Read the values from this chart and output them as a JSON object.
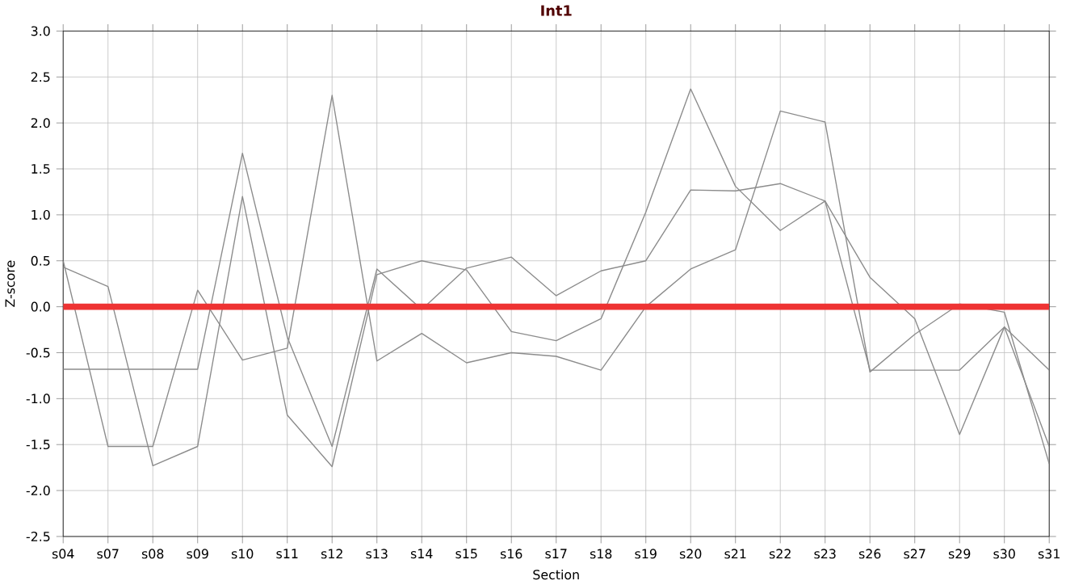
{
  "chart_data": {
    "type": "line",
    "title": "Int1",
    "xlabel": "Section",
    "ylabel": "Z-score",
    "categories": [
      "s04",
      "s07",
      "s08",
      "s09",
      "s10",
      "s11",
      "s12",
      "s13",
      "s14",
      "s15",
      "s16",
      "s17",
      "s18",
      "s19",
      "s20",
      "s21",
      "s22",
      "s23",
      "s26",
      "s27",
      "s29",
      "s30",
      "s31"
    ],
    "series": [
      {
        "color": "#8c8c8c",
        "values": [
          0.5,
          -1.52,
          -1.52,
          0.18,
          -0.58,
          -0.45,
          2.3,
          -0.59,
          -0.29,
          -0.61,
          -0.5,
          -0.54,
          -0.69,
          0.0,
          0.41,
          0.62,
          2.13,
          2.01,
          -0.71,
          -0.3,
          0.03,
          -0.06,
          -1.71
        ]
      },
      {
        "color": "#8c8c8c",
        "values": [
          0.43,
          0.22,
          -1.73,
          -1.52,
          1.2,
          -1.18,
          -1.74,
          0.35,
          0.5,
          0.4,
          -0.27,
          -0.37,
          -0.13,
          1.03,
          2.37,
          1.31,
          0.83,
          1.15,
          -0.69,
          -0.69,
          -0.69,
          -0.22,
          -0.69
        ]
      },
      {
        "color": "#8c8c8c",
        "values": [
          -0.68,
          -0.68,
          -0.68,
          -0.68,
          1.67,
          -0.33,
          -1.52,
          0.41,
          -0.03,
          0.42,
          0.54,
          0.12,
          0.39,
          0.5,
          1.27,
          1.26,
          1.34,
          1.15,
          0.32,
          -0.13,
          -1.39,
          -0.22,
          -1.52
        ]
      }
    ],
    "ylim": [
      -2.5,
      3.0
    ],
    "yticks": [
      {
        "value": -2.5,
        "label": "-2.5"
      },
      {
        "value": -2.0,
        "label": "-2.0"
      },
      {
        "value": -1.5,
        "label": "-1.5"
      },
      {
        "value": -1.0,
        "label": "-1.0"
      },
      {
        "value": -0.5,
        "label": "-0.5"
      },
      {
        "value": 0.0,
        "label": "0.0"
      },
      {
        "value": 0.5,
        "label": "0.5"
      },
      {
        "value": 1.0,
        "label": "1.0"
      },
      {
        "value": 1.5,
        "label": "1.5"
      },
      {
        "value": 2.0,
        "label": "2.0"
      },
      {
        "value": 2.5,
        "label": "2.5"
      },
      {
        "value": 3.0,
        "label": "3.0"
      }
    ],
    "ref_lines": [
      {
        "axis": "y",
        "value": 0,
        "color": "#ee3333"
      }
    ],
    "grid": true,
    "marker": "none",
    "line_style": "solid"
  }
}
